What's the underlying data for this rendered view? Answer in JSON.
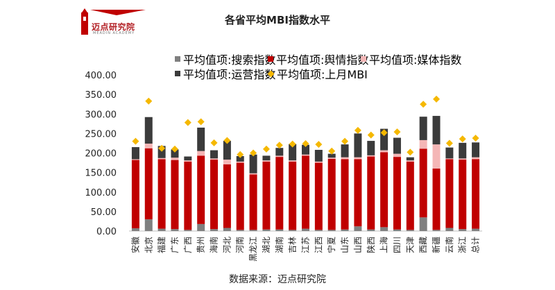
{
  "logo": {
    "text": "迈点研究院",
    "subtext": "MEADIN ACADEMY"
  },
  "title": "各省平均MBI指数水平",
  "source": "数据来源：迈点研究院",
  "colors": {
    "search": "#7f7f7f",
    "sentiment": "#c00000",
    "media": "#f4b6b6",
    "operation": "#3b3b3b",
    "last_month": "#f5b800"
  },
  "chart_data": {
    "type": "bar",
    "stacked": true,
    "categories": [
      "安徽",
      "北京",
      "福建",
      "广东",
      "广西",
      "贵州",
      "海南",
      "河北",
      "河南",
      "黑龙江",
      "湖北",
      "湖南",
      "吉林",
      "江苏",
      "江西",
      "宁夏",
      "山东",
      "山西",
      "陕西",
      "上海",
      "四川",
      "天津",
      "西藏",
      "新疆",
      "云南",
      "浙江",
      "总计"
    ],
    "ylim": [
      0,
      400
    ],
    "yticks": [
      "0.00",
      "50.00",
      "100.00",
      "150.00",
      "200.00",
      "250.00",
      "300.00",
      "350.00",
      "400.00"
    ],
    "legend_position": "top",
    "series": [
      {
        "name": "平均值项:搜索指数",
        "values": [
          7,
          30,
          6,
          5,
          3,
          18,
          5,
          8,
          3,
          3,
          4,
          4,
          3,
          6,
          3,
          3,
          4,
          12,
          4,
          10,
          4,
          3,
          35,
          3,
          8,
          5,
          6
        ]
      },
      {
        "name": "平均值项:舆情指数",
        "values": [
          175,
          182,
          178,
          177,
          175,
          175,
          178,
          163,
          172,
          142,
          174,
          186,
          175,
          187,
          172,
          182,
          180,
          172,
          187,
          192,
          186,
          175,
          176,
          157,
          176,
          178,
          178
        ]
      },
      {
        "name": "平均值项:媒体指数",
        "values": [
          2,
          12,
          3,
          6,
          3,
          12,
          3,
          12,
          3,
          3,
          3,
          3,
          3,
          3,
          3,
          3,
          5,
          5,
          3,
          5,
          8,
          3,
          22,
          62,
          2,
          3,
          5
        ]
      },
      {
        "name": "平均值项:运营指数",
        "values": [
          31,
          68,
          31,
          21,
          10,
          60,
          21,
          48,
          14,
          48,
          12,
          20,
          42,
          25,
          30,
          10,
          33,
          61,
          37,
          55,
          41,
          8,
          60,
          73,
          28,
          40,
          38
        ]
      },
      {
        "name": "平均值项:上月MBI",
        "type": "scatter",
        "values": [
          230,
          333,
          212,
          210,
          278,
          280,
          226,
          232,
          196,
          200,
          210,
          220,
          223,
          224,
          222,
          205,
          230,
          258,
          246,
          252,
          254,
          202,
          325,
          338,
          225,
          236,
          238
        ]
      }
    ]
  }
}
